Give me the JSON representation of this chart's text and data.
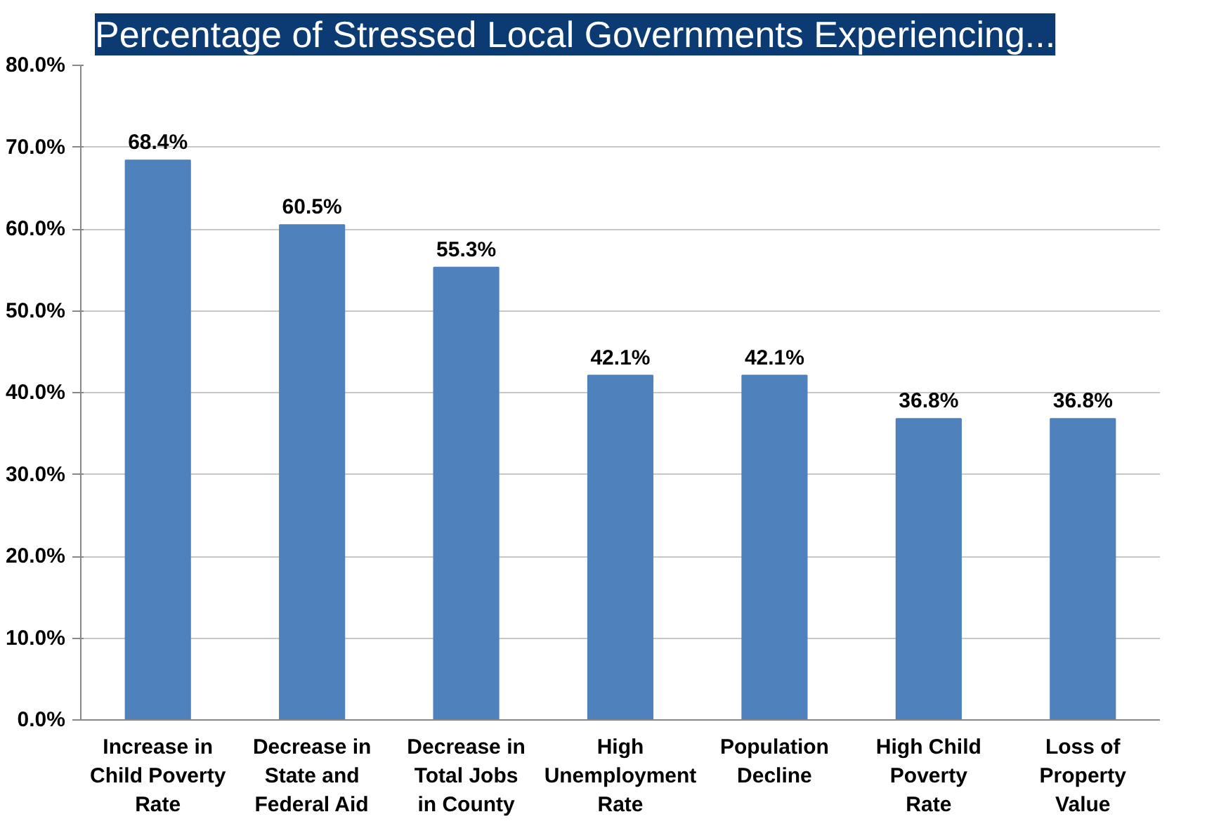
{
  "chart_data": {
    "type": "bar",
    "title": "Percentage of Stressed Local Governments Experiencing...",
    "categories": [
      "Increase in\nChild Poverty\nRate",
      "Decrease in\nState and\nFederal Aid",
      "Decrease in\nTotal Jobs\nin County",
      "High\nUnemployment\nRate",
      "Population\nDecline",
      "High Child\nPoverty\nRate",
      "Loss of\nProperty\nValue"
    ],
    "values": [
      68.4,
      60.5,
      55.3,
      42.1,
      42.1,
      36.8,
      36.8
    ],
    "value_labels": [
      "68.4%",
      "60.5%",
      "55.3%",
      "42.1%",
      "42.1%",
      "36.8%",
      "36.8%"
    ],
    "color": "#4f81bd",
    "ylim": [
      0,
      80
    ],
    "yticks": [
      {
        "value": 0,
        "label": "0.0%"
      },
      {
        "value": 10,
        "label": "10.0%"
      },
      {
        "value": 20,
        "label": "20.0%"
      },
      {
        "value": 30,
        "label": "30.0%"
      },
      {
        "value": 40,
        "label": "40.0%"
      },
      {
        "value": 50,
        "label": "50.0%"
      },
      {
        "value": 60,
        "label": "60.0%"
      },
      {
        "value": 70,
        "label": "70.0%"
      },
      {
        "value": 80,
        "label": "80.0%"
      }
    ],
    "grid": "y"
  }
}
